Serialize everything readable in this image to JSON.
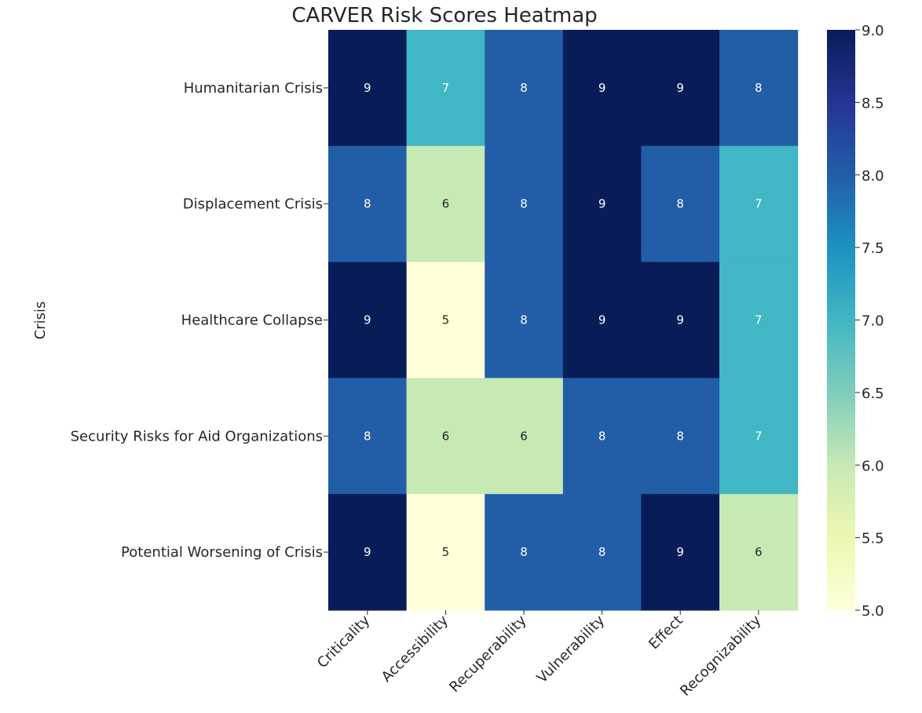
{
  "chart_data": {
    "type": "heatmap",
    "title": "CARVER Risk Scores Heatmap",
    "xlabel": "",
    "ylabel": "Crisis",
    "columns": [
      "Criticality",
      "Accessibility",
      "Recuperability",
      "Vulnerability",
      "Effect",
      "Recognizability"
    ],
    "rows": [
      "Humanitarian Crisis",
      "Displacement Crisis",
      "Healthcare Collapse",
      "Security Risks for Aid Organizations",
      "Potential Worsening of Crisis"
    ],
    "values": [
      [
        9,
        7,
        8,
        9,
        9,
        8
      ],
      [
        8,
        6,
        8,
        9,
        8,
        7
      ],
      [
        9,
        5,
        8,
        9,
        9,
        7
      ],
      [
        8,
        6,
        6,
        8,
        8,
        7
      ],
      [
        9,
        5,
        8,
        8,
        9,
        6
      ]
    ],
    "colormap": "YlGnBu",
    "vmin": 5,
    "vmax": 9,
    "colorbar_ticks": [
      "5.0",
      "5.5",
      "6.0",
      "6.5",
      "7.0",
      "7.5",
      "8.0",
      "8.5",
      "9.0"
    ],
    "colors": {
      "5": "#ffffd9",
      "6": "#c7e9b4",
      "7": "#41b6c4",
      "8": "#225ea8",
      "9": "#081d58"
    }
  }
}
